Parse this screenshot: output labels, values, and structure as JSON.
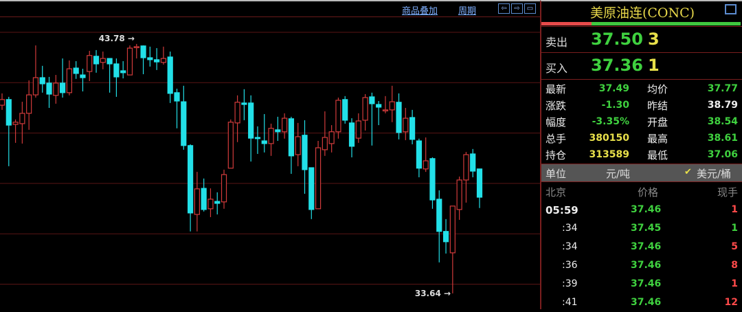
{
  "toolbar": {
    "overlay": "商品叠加",
    "period": "周期",
    "icons": [
      "arrow-left-icon",
      "arrow-right-icon",
      "layout-icon"
    ]
  },
  "quote": {
    "title": "美原油连(CONC)",
    "buy_sell_ratio": 0.25,
    "colors": {
      "up": "#ff4a4a",
      "down": "#3fd13f",
      "bull_candle": "#d23b3b",
      "bear_candle": "#22e0e8"
    },
    "ask": {
      "label": "卖出",
      "price": "37.50",
      "volume": "3"
    },
    "bid": {
      "label": "买入",
      "price": "37.36",
      "volume": "1"
    },
    "stats": [
      {
        "l1": "最新",
        "v1": "37.49",
        "l2": "均价",
        "v2": "37.77"
      },
      {
        "l1": "涨跌",
        "v1": "-1.30",
        "l2": "昨结",
        "v2": "38.79"
      },
      {
        "l1": "幅度",
        "v1": "-3.35%",
        "l2": "开盘",
        "v2": "38.54"
      },
      {
        "l1": "总手",
        "v1": "380150",
        "l2": "最高",
        "v2": "38.61"
      },
      {
        "l1": "持仓",
        "v1": "313589",
        "l2": "最低",
        "v2": "37.06"
      }
    ],
    "unit": {
      "label": "单位",
      "opt1": "元/吨",
      "opt2": "美元/桶",
      "check": "✔"
    },
    "trades_header": {
      "time": "北京",
      "price": "价格",
      "vol": "现手"
    },
    "trades": [
      {
        "time": "05:59",
        "price": "37.46",
        "vol": "1",
        "dir": "up"
      },
      {
        "time": ":34",
        "price": "37.45",
        "vol": "1",
        "dir": "down"
      },
      {
        "time": ":34",
        "price": "37.46",
        "vol": "5",
        "dir": "up"
      },
      {
        "time": ":36",
        "price": "37.46",
        "vol": "8",
        "dir": "up"
      },
      {
        "time": ":39",
        "price": "37.46",
        "vol": "1",
        "dir": "up"
      },
      {
        "time": ":41",
        "price": "37.46",
        "vol": "12",
        "dir": "up"
      }
    ]
  },
  "chart_data": {
    "type": "candlestick",
    "ylim": [
      32.94,
      44.84
    ],
    "grid": true,
    "max_label": "43.78",
    "min_label": "33.64",
    "ohlc": [
      [
        41.29,
        41.77,
        41.1,
        41.52
      ],
      [
        41.52,
        41.63,
        38.81,
        40.48
      ],
      [
        40.51,
        40.71,
        39.76,
        40.6
      ],
      [
        40.54,
        41.43,
        39.73,
        40.96
      ],
      [
        40.96,
        42.3,
        40.29,
        41.71
      ],
      [
        41.71,
        43.72,
        41.6,
        42.41
      ],
      [
        42.41,
        42.89,
        41.8,
        42.16
      ],
      [
        42.19,
        42.44,
        41.18,
        41.74
      ],
      [
        41.69,
        42.52,
        41.35,
        42.19
      ],
      [
        42.19,
        43.19,
        41.6,
        41.8
      ],
      [
        41.8,
        43.11,
        41.69,
        42.77
      ],
      [
        42.8,
        43.08,
        42.36,
        42.58
      ],
      [
        42.52,
        42.77,
        41.85,
        42.41
      ],
      [
        42.66,
        43.5,
        42.27,
        43.31
      ],
      [
        43.28,
        43.53,
        42.61,
        42.97
      ],
      [
        43.03,
        43.47,
        42.75,
        43.19
      ],
      [
        43.19,
        43.19,
        41.8,
        42.97
      ],
      [
        42.97,
        43.19,
        41.63,
        42.44
      ],
      [
        42.69,
        43.08,
        42.38,
        42.61
      ],
      [
        42.52,
        43.72,
        42.52,
        43.61
      ],
      [
        43.64,
        43.78,
        43.19,
        43.67
      ],
      [
        43.7,
        43.72,
        42.55,
        43.22
      ],
      [
        43.22,
        43.67,
        42.86,
        43.14
      ],
      [
        43.14,
        43.61,
        42.72,
        43.05
      ],
      [
        43.03,
        43.67,
        42.94,
        43.19
      ],
      [
        43.25,
        43.47,
        41.38,
        41.77
      ],
      [
        41.8,
        41.96,
        40.35,
        41.46
      ],
      [
        41.43,
        42.08,
        39.48,
        39.65
      ],
      [
        39.65,
        39.7,
        36.16,
        36.91
      ],
      [
        36.85,
        38.58,
        36.16,
        37.89
      ],
      [
        37.91,
        38.31,
        36.97,
        37.05
      ],
      [
        37.08,
        37.91,
        36.74,
        37.47
      ],
      [
        37.38,
        37.75,
        36.85,
        37.3
      ],
      [
        37.36,
        38.67,
        37.08,
        38.47
      ],
      [
        38.73,
        40.71,
        38.73,
        40.6
      ],
      [
        40.57,
        41.69,
        39.79,
        41.41
      ],
      [
        41.38,
        41.94,
        40.68,
        41.32
      ],
      [
        41.38,
        41.69,
        39.0,
        39.95
      ],
      [
        39.98,
        40.43,
        39.31,
        39.93
      ],
      [
        39.84,
        40.93,
        39.37,
        39.73
      ],
      [
        39.73,
        40.54,
        39.23,
        40.35
      ],
      [
        40.29,
        40.82,
        39.84,
        40.21
      ],
      [
        40.21,
        40.96,
        39.93,
        40.76
      ],
      [
        40.74,
        40.82,
        38.5,
        39.23
      ],
      [
        39.28,
        40.57,
        38.81,
        40.01
      ],
      [
        40.07,
        40.68,
        37.69,
        38.67
      ],
      [
        38.75,
        38.75,
        36.66,
        37.05
      ],
      [
        37.08,
        39.84,
        37.08,
        39.56
      ],
      [
        39.48,
        41.04,
        39.23,
        39.98
      ],
      [
        39.73,
        40.48,
        39.37,
        40.21
      ],
      [
        40.21,
        41.6,
        39.93,
        41.49
      ],
      [
        41.52,
        41.66,
        40.54,
        40.68
      ],
      [
        40.57,
        40.76,
        39.17,
        39.62
      ],
      [
        39.95,
        40.96,
        39.76,
        40.65
      ],
      [
        40.68,
        41.74,
        40.26,
        41.6
      ],
      [
        41.63,
        41.8,
        39.65,
        41.35
      ],
      [
        41.32,
        41.46,
        40.48,
        41.21
      ],
      [
        41.07,
        41.66,
        40.96,
        41.1
      ],
      [
        41.1,
        42.08,
        40.6,
        41.43
      ],
      [
        41.41,
        41.77,
        39.9,
        40.18
      ],
      [
        40.21,
        41.18,
        39.87,
        40.76
      ],
      [
        40.79,
        41.1,
        39.7,
        39.9
      ],
      [
        39.84,
        39.93,
        38.36,
        38.73
      ],
      [
        38.7,
        39.98,
        38.58,
        39.03
      ],
      [
        39.12,
        39.17,
        37.08,
        37.44
      ],
      [
        37.47,
        37.83,
        34.9,
        36.16
      ],
      [
        36.16,
        36.66,
        35.26,
        35.74
      ],
      [
        35.29,
        37.19,
        33.64,
        37.19
      ],
      [
        37.05,
        38.39,
        36.63,
        38.25
      ],
      [
        38.25,
        39.39,
        37.33,
        39.28
      ],
      [
        39.31,
        39.51,
        38.36,
        38.61
      ],
      [
        38.7,
        38.7,
        37.11,
        37.55
      ]
    ]
  }
}
